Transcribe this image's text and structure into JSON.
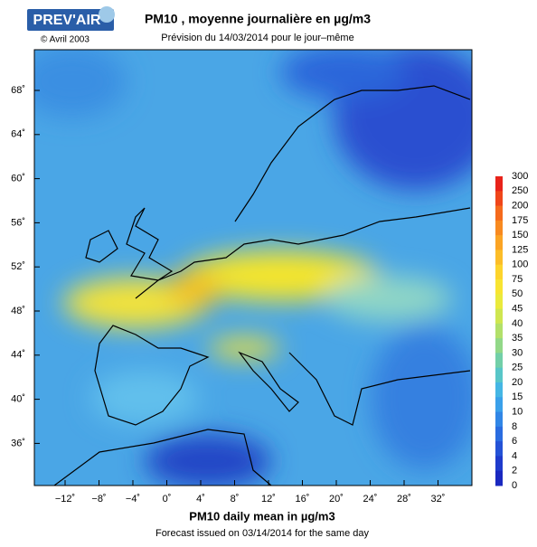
{
  "header": {
    "logo": "PREV'AIR",
    "copyright": "© Avril 2003",
    "title": "PM10 , moyenne journalière en µg/m3",
    "subtitle": "Prévision du 14/03/2014 pour le jour–même"
  },
  "map": {
    "lat_ticks": [
      "68˚",
      "64˚",
      "60˚",
      "56˚",
      "52˚",
      "48˚",
      "44˚",
      "40˚",
      "36˚"
    ],
    "lon_ticks": [
      "−12˚",
      "−8˚",
      "−4˚",
      "0˚",
      "4˚",
      "8˚",
      "12˚",
      "16˚",
      "20˚",
      "24˚",
      "28˚",
      "32˚"
    ]
  },
  "colorbar": {
    "levels": [
      300,
      250,
      200,
      175,
      150,
      125,
      100,
      75,
      50,
      45,
      40,
      35,
      30,
      25,
      20,
      15,
      10,
      8,
      6,
      4,
      2,
      0
    ]
  },
  "footer": {
    "title": "PM10 daily mean in µg/m3",
    "note": "Forecast issued on 03/14/2014 for the same day"
  }
}
